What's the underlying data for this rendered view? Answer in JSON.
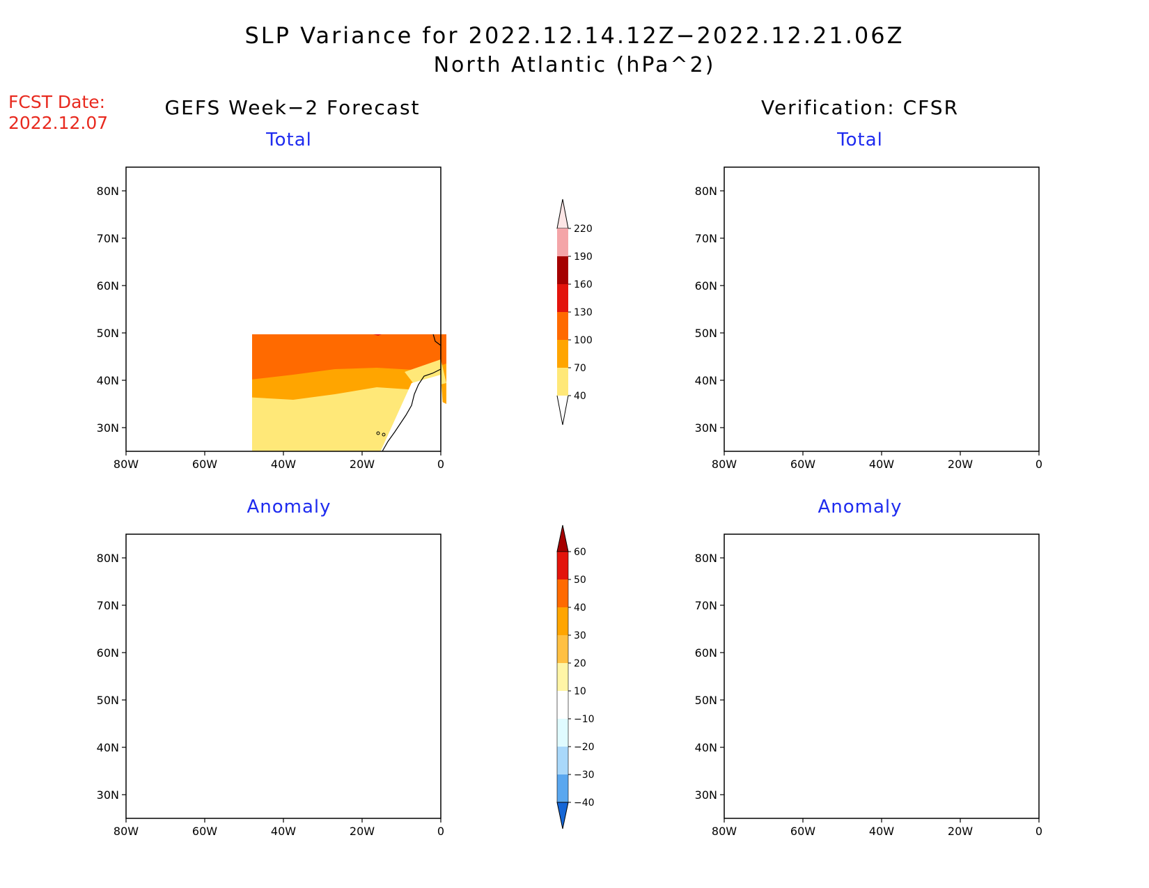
{
  "title": "SLP Variance for 2022.12.14.12Z−2022.12.21.06Z",
  "subtitle": "North Atlantic (hPa^2)",
  "fcst_date_label": "FCST Date:",
  "fcst_date_value": "2022.12.07",
  "left_column_title": "GEFS Week−2 Forecast",
  "right_column_title": "Verification: CFSR",
  "panels": {
    "top_left": "Total",
    "top_right": "Total",
    "bottom_left": "Anomaly",
    "bottom_right": "Anomaly"
  },
  "axis": {
    "lat_labels": [
      "80N",
      "70N",
      "60N",
      "50N",
      "40N",
      "30N"
    ],
    "lat_values": [
      80,
      70,
      60,
      50,
      40,
      30
    ],
    "lon_labels": [
      "80W",
      "60W",
      "40W",
      "20W",
      "0"
    ],
    "lon_values": [
      -80,
      -60,
      -40,
      -20,
      0
    ],
    "lat_range": [
      25,
      85
    ],
    "lon_range": [
      -80,
      0
    ]
  },
  "total_colorbar": {
    "levels": [
      "220",
      "190",
      "160",
      "130",
      "100",
      "70",
      "40"
    ],
    "colors": [
      "#fde6e6",
      "#f4a5a8",
      "#a50000",
      "#e3140c",
      "#ff6a00",
      "#ffa500",
      "#ffe878"
    ]
  },
  "anomaly_colorbar": {
    "levels": [
      "60",
      "50",
      "40",
      "30",
      "20",
      "10",
      "−10",
      "−20",
      "−30",
      "−40"
    ],
    "colors": [
      "#a50000",
      "#e3140c",
      "#ff6a00",
      "#ffa500",
      "#ffc042",
      "#fff5a6",
      "#ffffff",
      "#e0fbff",
      "#a9d8fa",
      "#5aa7ef",
      "#2a7de0",
      "#1566d6"
    ]
  },
  "colors": {
    "title_red": "#e8291e",
    "panel_title_blue": "#1e2bef"
  }
}
